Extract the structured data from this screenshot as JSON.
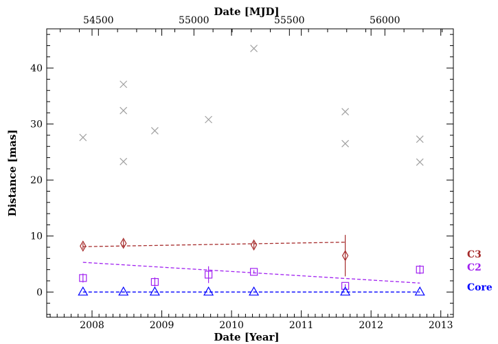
{
  "chart_data": {
    "type": "scatter",
    "xlabel": "Date [Year]",
    "ylabel": "Distance [mas]",
    "x2label": "Date [MJD]",
    "xlim": [
      2007.35,
      2013.18
    ],
    "ylim": [
      -4.5,
      47
    ],
    "xticks": [
      2008,
      2009,
      2010,
      2011,
      2012,
      2013
    ],
    "yticks": [
      0,
      10,
      20,
      30,
      40
    ],
    "mjd_ticks": [
      54500,
      55000,
      55500,
      56000
    ],
    "grid": false,
    "legend_position": "right-outside",
    "series": [
      {
        "name": "C3",
        "color": "#a52a2a",
        "marker": "diamond",
        "points": [
          {
            "x": 2007.87,
            "y": 8.2,
            "err": 0.5
          },
          {
            "x": 2008.45,
            "y": 8.7,
            "err": 0.6
          },
          {
            "x": 2010.32,
            "y": 8.4,
            "err": 0.6
          },
          {
            "x": 2011.63,
            "y": 6.5,
            "err": 3.7
          }
        ],
        "fit": {
          "x0": 2007.87,
          "y0": 8.1,
          "x1": 2011.63,
          "y1": 8.9
        }
      },
      {
        "name": "C2",
        "color": "#a020f0",
        "marker": "square",
        "points": [
          {
            "x": 2007.87,
            "y": 2.5,
            "err": 0.8
          },
          {
            "x": 2008.9,
            "y": 1.8,
            "err": 0.8
          },
          {
            "x": 2009.67,
            "y": 3.1,
            "err": 1.5
          },
          {
            "x": 2010.32,
            "y": 3.6,
            "err": 0.3
          },
          {
            "x": 2011.63,
            "y": 1.1,
            "err": 0.3
          },
          {
            "x": 2012.7,
            "y": 4.0,
            "err": 0.8
          }
        ],
        "fit": {
          "x0": 2007.87,
          "y0": 5.3,
          "x1": 2012.7,
          "y1": 1.6
        }
      },
      {
        "name": "Core",
        "color": "#0000ff",
        "marker": "triangle",
        "points": [
          {
            "x": 2007.87,
            "y": 0.0
          },
          {
            "x": 2008.45,
            "y": 0.0
          },
          {
            "x": 2008.9,
            "y": 0.0
          },
          {
            "x": 2009.67,
            "y": 0.0
          },
          {
            "x": 2010.32,
            "y": 0.0
          },
          {
            "x": 2011.63,
            "y": 0.0
          },
          {
            "x": 2012.7,
            "y": 0.0
          }
        ],
        "fit": {
          "x0": 2007.87,
          "y0": 0.0,
          "x1": 2012.7,
          "y1": 0.0
        }
      },
      {
        "color": "#a0a0a0",
        "marker": "cross",
        "points": [
          {
            "x": 2007.87,
            "y": 27.6
          },
          {
            "x": 2008.45,
            "y": 37.1
          },
          {
            "x": 2008.45,
            "y": 32.4
          },
          {
            "x": 2008.45,
            "y": 23.3
          },
          {
            "x": 2008.9,
            "y": 28.8
          },
          {
            "x": 2009.67,
            "y": 30.8
          },
          {
            "x": 2010.32,
            "y": 43.5
          },
          {
            "x": 2011.63,
            "y": 32.2
          },
          {
            "x": 2011.63,
            "y": 26.5
          },
          {
            "x": 2012.7,
            "y": 27.3
          },
          {
            "x": 2012.7,
            "y": 23.2
          }
        ]
      }
    ]
  }
}
